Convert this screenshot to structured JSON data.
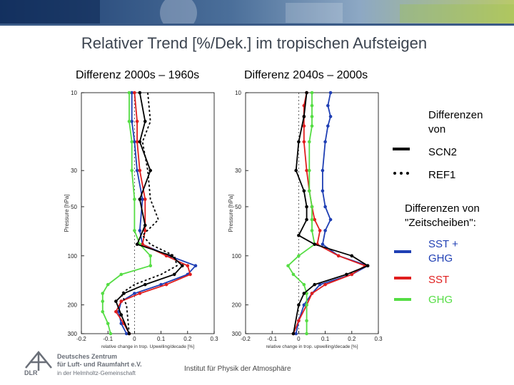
{
  "slide": {
    "title": "Relativer Trend [%/Dek.] im tropischen Aufsteigen",
    "subtitle_left": "Differenz 2000s – 1960s",
    "subtitle_right": "Differenz 2040s – 2000s",
    "footer": "Institut für Physik der Atmosphäre"
  },
  "logo": {
    "line1": "Deutsches Zentrum",
    "line2": "für Luft- und Raumfahrt e.V.",
    "line3": "in der Helmholtz-Gemeinschaft",
    "abbr": "DLR"
  },
  "legend": {
    "heading1": "Differenzen von",
    "scn2": "SCN2",
    "ref1": "REF1",
    "heading2": "Differenzen von \"Zeitscheiben\":",
    "sst_ghg": "SST + GHG",
    "sst": "SST",
    "ghg": "GHG",
    "colors": {
      "sst_ghg": "#1f3fb4",
      "sst": "#e01e1e",
      "ghg": "#55dd44",
      "black": "#000000"
    }
  },
  "chart_data": [
    {
      "type": "line",
      "xlabel": "relative change in trop. Upwelling/decade [%]",
      "ylabel": "Pressure [hPa]",
      "xlim": [
        -0.2,
        0.3
      ],
      "ylim": [
        300,
        10
      ],
      "xticks": [
        "-0.2",
        "-0.1",
        "0",
        "0.1",
        "0.2",
        "0.3"
      ],
      "yticks": [
        "10",
        "30",
        "50",
        "100",
        "200",
        "300"
      ],
      "series": [
        {
          "name": "SST + GHG",
          "color": "#1f3fb4",
          "dash": "solid",
          "markers": true,
          "points": [
            [
              -0.01,
              10
            ],
            [
              -0.01,
              15
            ],
            [
              0.0,
              20
            ],
            [
              0.01,
              30
            ],
            [
              0.03,
              45
            ],
            [
              0.02,
              70
            ],
            [
              0.03,
              85
            ],
            [
              0.13,
              100
            ],
            [
              0.23,
              115
            ],
            [
              0.2,
              130
            ],
            [
              0.1,
              150
            ],
            [
              0.0,
              170
            ],
            [
              -0.05,
              190
            ],
            [
              -0.06,
              220
            ],
            [
              -0.05,
              260
            ],
            [
              -0.03,
              300
            ]
          ]
        },
        {
          "name": "SST",
          "color": "#e01e1e",
          "dash": "solid",
          "markers": true,
          "points": [
            [
              0.0,
              10
            ],
            [
              0.01,
              15
            ],
            [
              0.01,
              20
            ],
            [
              0.02,
              30
            ],
            [
              0.04,
              45
            ],
            [
              0.04,
              70
            ],
            [
              0.03,
              85
            ],
            [
              0.12,
              100
            ],
            [
              0.2,
              115
            ],
            [
              0.21,
              130
            ],
            [
              0.12,
              150
            ],
            [
              0.02,
              170
            ],
            [
              -0.05,
              190
            ],
            [
              -0.07,
              220
            ],
            [
              -0.04,
              260
            ],
            [
              -0.02,
              300
            ]
          ]
        },
        {
          "name": "GHG",
          "color": "#55dd44",
          "dash": "solid",
          "markers": true,
          "points": [
            [
              -0.02,
              10
            ],
            [
              -0.02,
              15
            ],
            [
              -0.01,
              20
            ],
            [
              -0.01,
              30
            ],
            [
              0.0,
              45
            ],
            [
              0.0,
              70
            ],
            [
              0.02,
              85
            ],
            [
              0.06,
              100
            ],
            [
              0.06,
              115
            ],
            [
              -0.05,
              130
            ],
            [
              -0.1,
              150
            ],
            [
              -0.12,
              170
            ],
            [
              -0.12,
              190
            ],
            [
              -0.12,
              220
            ],
            [
              -0.1,
              260
            ],
            [
              -0.09,
              300
            ]
          ]
        },
        {
          "name": "SCN2 (SST + GHG)",
          "color": "#000000",
          "dash": "solid",
          "markers": true,
          "points": [
            [
              0.02,
              10
            ],
            [
              0.04,
              15
            ],
            [
              0.02,
              20
            ],
            [
              0.06,
              30
            ],
            [
              0.02,
              45
            ],
            [
              0.04,
              65
            ],
            [
              0.01,
              85
            ],
            [
              0.14,
              100
            ],
            [
              0.18,
              115
            ],
            [
              0.15,
              130
            ],
            [
              0.04,
              150
            ],
            [
              -0.04,
              170
            ],
            [
              -0.07,
              190
            ],
            [
              -0.05,
              230
            ],
            [
              -0.02,
              300
            ]
          ]
        },
        {
          "name": "REF1 (SST + GHG)",
          "color": "#000000",
          "dash": "dotted",
          "markers": false,
          "points": [
            [
              0.05,
              10
            ],
            [
              0.06,
              15
            ],
            [
              0.03,
              20
            ],
            [
              0.05,
              30
            ],
            [
              0.06,
              45
            ],
            [
              0.09,
              60
            ],
            [
              0.03,
              75
            ],
            [
              0.06,
              85
            ],
            [
              0.15,
              100
            ],
            [
              0.16,
              115
            ],
            [
              0.1,
              130
            ],
            [
              0.0,
              150
            ],
            [
              -0.05,
              170
            ],
            [
              -0.03,
              200
            ],
            [
              -0.02,
              300
            ]
          ]
        }
      ]
    },
    {
      "type": "line",
      "xlabel": "relative change in trop. upwelling/decade [%]",
      "ylabel": "Pressure [hPa]",
      "xlim": [
        -0.2,
        0.3
      ],
      "ylim": [
        300,
        10
      ],
      "xticks": [
        "-0.2",
        "-0.1",
        "0",
        "0.1",
        "0.2",
        "0.3"
      ],
      "yticks": [
        "10",
        "30",
        "50",
        "100",
        "200",
        "300"
      ],
      "series": [
        {
          "name": "SST + GHG",
          "color": "#1f3fb4",
          "dash": "solid",
          "markers": true,
          "points": [
            [
              0.12,
              10
            ],
            [
              0.11,
              12
            ],
            [
              0.12,
              14
            ],
            [
              0.11,
              16
            ],
            [
              0.1,
              20
            ],
            [
              0.09,
              30
            ],
            [
              0.09,
              40
            ],
            [
              0.1,
              50
            ],
            [
              0.12,
              60
            ],
            [
              0.1,
              70
            ],
            [
              0.09,
              85
            ],
            [
              0.15,
              100
            ],
            [
              0.26,
              115
            ],
            [
              0.2,
              130
            ],
            [
              0.08,
              150
            ],
            [
              0.05,
              170
            ],
            [
              0.02,
              200
            ],
            [
              0.0,
              250
            ],
            [
              -0.01,
              300
            ]
          ]
        },
        {
          "name": "SST",
          "color": "#e01e1e",
          "dash": "solid",
          "markers": true,
          "points": [
            [
              0.03,
              10
            ],
            [
              0.02,
              12
            ],
            [
              0.02,
              14
            ],
            [
              0.02,
              16
            ],
            [
              0.02,
              20
            ],
            [
              0.03,
              30
            ],
            [
              0.04,
              40
            ],
            [
              0.05,
              50
            ],
            [
              0.06,
              60
            ],
            [
              0.08,
              70
            ],
            [
              0.07,
              85
            ],
            [
              0.15,
              100
            ],
            [
              0.25,
              115
            ],
            [
              0.2,
              130
            ],
            [
              0.1,
              150
            ],
            [
              0.05,
              170
            ],
            [
              0.03,
              200
            ],
            [
              0.0,
              250
            ],
            [
              -0.02,
              300
            ]
          ]
        },
        {
          "name": "GHG",
          "color": "#55dd44",
          "dash": "solid",
          "markers": true,
          "points": [
            [
              0.05,
              10
            ],
            [
              0.05,
              12
            ],
            [
              0.05,
              14
            ],
            [
              0.05,
              16
            ],
            [
              0.04,
              20
            ],
            [
              0.04,
              30
            ],
            [
              0.04,
              40
            ],
            [
              0.05,
              50
            ],
            [
              0.05,
              60
            ],
            [
              0.05,
              70
            ],
            [
              0.06,
              85
            ],
            [
              0.0,
              100
            ],
            [
              -0.04,
              115
            ],
            [
              -0.02,
              130
            ],
            [
              0.02,
              150
            ],
            [
              0.03,
              170
            ],
            [
              0.03,
              200
            ],
            [
              0.03,
              250
            ],
            [
              0.03,
              300
            ]
          ]
        },
        {
          "name": "SCN2 (SST + GHG)",
          "color": "#000000",
          "dash": "solid",
          "markers": true,
          "points": [
            [
              0.03,
              10
            ],
            [
              0.02,
              14
            ],
            [
              0.0,
              20
            ],
            [
              -0.01,
              30
            ],
            [
              0.02,
              40
            ],
            [
              0.03,
              50
            ],
            [
              0.03,
              60
            ],
            [
              0.0,
              75
            ],
            [
              0.06,
              85
            ],
            [
              0.2,
              100
            ],
            [
              0.26,
              115
            ],
            [
              0.18,
              130
            ],
            [
              0.06,
              150
            ],
            [
              0.02,
              170
            ],
            [
              0.0,
              200
            ],
            [
              -0.02,
              300
            ]
          ]
        }
      ]
    }
  ]
}
